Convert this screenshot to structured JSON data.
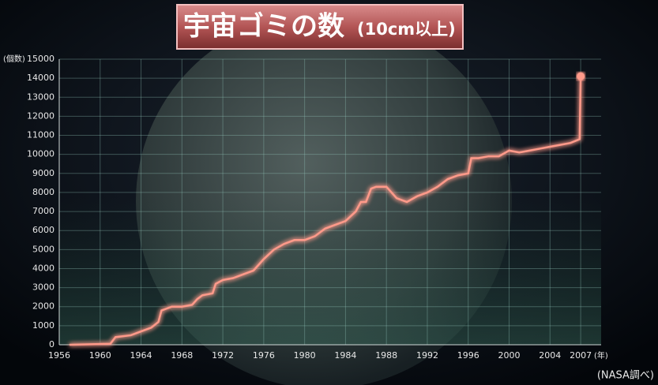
{
  "chart_data": {
    "type": "line",
    "title": "宇宙ゴミの数",
    "subtitle": "(10cm以上)",
    "y_label": "(個数)",
    "x_label": "(年)",
    "source": "(NASA調べ)",
    "x": [
      1957,
      1961,
      1961.5,
      1963,
      1964,
      1965,
      1965.7,
      1966,
      1967,
      1968,
      1969,
      1969.5,
      1970,
      1971,
      1971.3,
      1972,
      1973,
      1974,
      1975,
      1976,
      1977,
      1978,
      1979,
      1980,
      1981,
      1982,
      1983,
      1984,
      1985,
      1985.5,
      1986,
      1986.5,
      1987,
      1988,
      1989,
      1990,
      1991,
      1992,
      1993,
      1994,
      1995,
      1996,
      1996.3,
      1997,
      1998,
      1999,
      2000,
      2001,
      2002,
      2003,
      2004,
      2005,
      2006,
      2006.9,
      2007
    ],
    "series": [
      {
        "name": "宇宙ゴミの数",
        "color": "#ff9a8a",
        "values": [
          0,
          50,
          400,
          500,
          700,
          900,
          1200,
          1800,
          2000,
          2000,
          2100,
          2400,
          2600,
          2700,
          3200,
          3400,
          3500,
          3700,
          3900,
          4500,
          5000,
          5300,
          5500,
          5500,
          5700,
          6100,
          6300,
          6500,
          7000,
          7500,
          7500,
          8200,
          8300,
          8300,
          7700,
          7500,
          7800,
          8000,
          8300,
          8700,
          8900,
          9000,
          9800,
          9800,
          9900,
          9900,
          10200,
          10100,
          10200,
          10300,
          10400,
          10500,
          10600,
          10800,
          14100
        ]
      }
    ],
    "xlim": [
      1956,
      2009
    ],
    "xticks": [
      1956,
      1960,
      1964,
      1968,
      1972,
      1976,
      1980,
      1984,
      1988,
      1992,
      1996,
      2000,
      2004,
      2007
    ],
    "ylim": [
      0,
      15000
    ],
    "yticks": [
      0,
      1000,
      2000,
      3000,
      4000,
      5000,
      6000,
      7000,
      8000,
      9000,
      10000,
      11000,
      12000,
      13000,
      14000,
      15000
    ],
    "grid": true
  }
}
